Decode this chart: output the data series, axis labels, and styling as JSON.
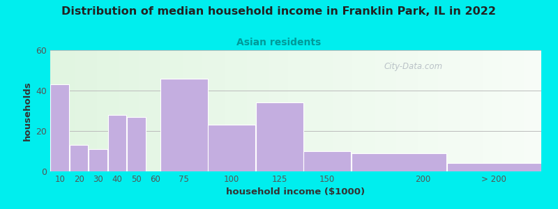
{
  "title": "Distribution of median household income in Franklin Park, IL in 2022",
  "subtitle": "Asian residents",
  "xlabel": "household income ($1000)",
  "ylabel": "households",
  "title_fontsize": 11.5,
  "subtitle_fontsize": 10,
  "subtitle_color": "#009999",
  "background_color": "#00EEEE",
  "bar_color": "#c4aee0",
  "ylim": [
    0,
    60
  ],
  "yticks": [
    0,
    20,
    40,
    60
  ],
  "values": [
    43,
    13,
    11,
    28,
    27,
    0,
    46,
    23,
    34,
    10,
    9,
    4
  ],
  "bar_lefts": [
    5,
    15,
    25,
    35,
    45,
    55,
    62.5,
    87.5,
    112.5,
    137.5,
    162.5,
    212.5
  ],
  "bar_rights": [
    15,
    25,
    35,
    45,
    55,
    62.5,
    87.5,
    112.5,
    137.5,
    162.5,
    212.5,
    262
  ],
  "xtick_positions": [
    10,
    20,
    30,
    40,
    50,
    60,
    75,
    100,
    125,
    150,
    200
  ],
  "xtick_labels": [
    "10",
    "20",
    "30",
    "40",
    "50",
    "60",
    "75",
    "100",
    "125",
    "150",
    "200"
  ],
  "xmax_label": "> 200",
  "xmax_tick": 237,
  "xlim": [
    5,
    262
  ],
  "grid_color": "#bbbbbb",
  "watermark": "City-Data.com"
}
